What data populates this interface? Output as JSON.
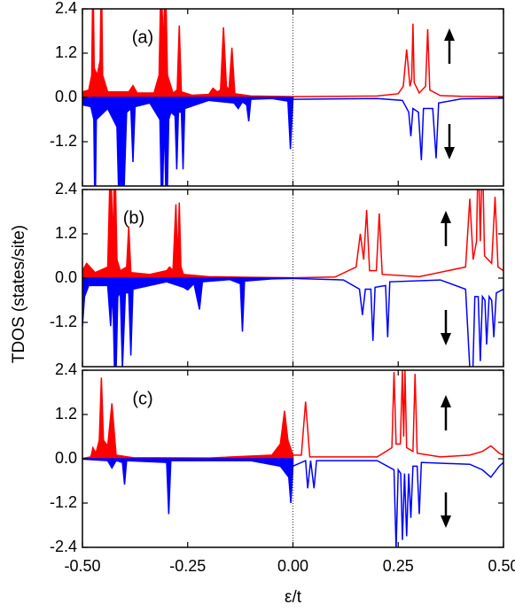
{
  "chart_data": [
    {
      "type": "line",
      "annotation": "(a)",
      "xlim": [
        -0.5,
        0.5
      ],
      "ylim": [
        -2.4,
        2.4
      ],
      "xticks": [
        -0.5,
        -0.25,
        0,
        0.25,
        0.5
      ],
      "yticks": [
        2.4,
        1.2,
        {
          "value": 0,
          "label": "0.0"
        },
        -1.2
      ],
      "vline": 0,
      "series": [
        {
          "color": "#ff0000",
          "fill": true,
          "x": [
            -0.5,
            -0.485,
            -0.478,
            -0.475,
            -0.472,
            -0.465,
            -0.458,
            -0.455,
            -0.452,
            -0.44,
            -0.39,
            -0.38,
            -0.37,
            -0.33,
            -0.318,
            -0.313,
            -0.308,
            -0.303,
            -0.298,
            -0.285,
            -0.275,
            -0.27,
            -0.265,
            -0.24,
            -0.2,
            -0.19,
            -0.18,
            -0.172,
            -0.165,
            -0.158,
            -0.152,
            -0.145,
            -0.138,
            -0.1,
            -0.05,
            0
          ],
          "values": [
            0.15,
            0.2,
            0.6,
            3.5,
            0.8,
            0.6,
            1,
            3.5,
            0.6,
            0.15,
            0.15,
            0.32,
            0.12,
            0.12,
            0.6,
            3.5,
            1.2,
            3.5,
            0.6,
            0.12,
            0.2,
            1.95,
            0.15,
            0.06,
            0.08,
            0.25,
            0.15,
            0.2,
            1.9,
            0.3,
            0.2,
            1.35,
            0.1,
            0.04,
            0.03,
            0.02
          ]
        },
        {
          "color": "#ff0000",
          "fill": false,
          "x": [
            0,
            0.2,
            0.25,
            0.262,
            0.27,
            0.278,
            0.282,
            0.285,
            0.288,
            0.3,
            0.315,
            0.32,
            0.325,
            0.35,
            0.4,
            0.5
          ],
          "values": [
            0.02,
            0.04,
            0.1,
            0.3,
            1.3,
            0.3,
            0.5,
            2.0,
            0.4,
            0.12,
            0.3,
            1.85,
            0.2,
            0.05,
            0.03,
            0.02
          ]
        },
        {
          "color": "#0000ff",
          "fill": true,
          "x": [
            -0.5,
            -0.48,
            -0.473,
            -0.47,
            -0.467,
            -0.44,
            -0.418,
            -0.412,
            -0.408,
            -0.404,
            -0.395,
            -0.385,
            -0.38,
            -0.375,
            -0.34,
            -0.316,
            -0.311,
            -0.306,
            -0.3,
            -0.295,
            -0.29,
            -0.28,
            -0.276,
            -0.272,
            -0.265,
            -0.261,
            -0.257,
            -0.2,
            -0.14,
            -0.13,
            -0.12,
            -0.11,
            -0.105,
            -0.1,
            -0.05,
            -0.012,
            -0.006,
            0
          ],
          "values": [
            -0.2,
            -0.25,
            -0.6,
            -3.5,
            -0.6,
            -0.3,
            -0.8,
            -3.5,
            -1.5,
            -3.5,
            -0.4,
            -0.3,
            -1.75,
            -0.25,
            -0.15,
            -0.6,
            -3.5,
            -0.5,
            -3.5,
            -0.6,
            -0.4,
            -0.5,
            -1.95,
            -0.4,
            -0.4,
            -1.95,
            -0.3,
            -0.08,
            -0.15,
            -0.3,
            -0.12,
            -0.2,
            -0.65,
            -0.05,
            -0.03,
            -0.1,
            -1.4,
            -0.05
          ]
        },
        {
          "color": "#0000ff",
          "fill": false,
          "x": [
            0,
            0.2,
            0.26,
            0.275,
            0.28,
            0.285,
            0.298,
            0.305,
            0.31,
            0.332,
            0.34,
            0.346,
            0.4,
            0.5
          ],
          "values": [
            -0.05,
            -0.03,
            -0.08,
            -0.4,
            -1.05,
            -0.3,
            -0.4,
            -1.7,
            -0.3,
            -0.3,
            -1.65,
            -0.15,
            -0.04,
            -0.02
          ]
        }
      ]
    },
    {
      "type": "line",
      "annotation": "(b)",
      "ylabel": "TDOS (states/site)",
      "xlim": [
        -0.5,
        0.5
      ],
      "ylim": [
        -2.4,
        2.4
      ],
      "xticks": [
        -0.5,
        -0.25,
        0,
        0.25,
        0.5
      ],
      "yticks": [
        2.4,
        1.2,
        {
          "value": 0,
          "label": "0.0"
        },
        -1.2
      ],
      "vline": 0,
      "series": [
        {
          "color": "#ff0000",
          "fill": true,
          "x": [
            -0.5,
            -0.49,
            -0.47,
            -0.44,
            -0.433,
            -0.428,
            -0.423,
            -0.418,
            -0.41,
            -0.395,
            -0.39,
            -0.385,
            -0.34,
            -0.3,
            -0.293,
            -0.285,
            -0.278,
            -0.274,
            -0.27,
            -0.266,
            -0.26,
            -0.2,
            -0.1,
            0
          ],
          "values": [
            0.2,
            0.4,
            0.15,
            0.3,
            3.5,
            0.8,
            3.5,
            0.5,
            0.2,
            0.3,
            1.4,
            0.15,
            0.1,
            0.2,
            0.3,
            0.2,
            2.0,
            0.4,
            2.05,
            0.3,
            0.1,
            0.04,
            0.02,
            0.01
          ]
        },
        {
          "color": "#ff0000",
          "fill": false,
          "x": [
            0,
            0.1,
            0.15,
            0.16,
            0.168,
            0.175,
            0.182,
            0.198,
            0.205,
            0.212,
            0.3,
            0.41,
            0.42,
            0.428,
            0.436,
            0.44,
            0.445,
            0.45,
            0.455,
            0.472,
            0.48,
            0.487,
            0.5
          ],
          "values": [
            0.01,
            0.03,
            0.3,
            1.2,
            0.5,
            1.85,
            0.2,
            0.2,
            1.75,
            0.1,
            0.04,
            0.3,
            2.15,
            0.5,
            1,
            3.5,
            1,
            3.5,
            0.6,
            0.4,
            2.2,
            0.3,
            0.2
          ]
        },
        {
          "color": "#0000ff",
          "fill": true,
          "x": [
            -0.5,
            -0.495,
            -0.485,
            -0.44,
            -0.433,
            -0.428,
            -0.422,
            -0.416,
            -0.41,
            -0.405,
            -0.398,
            -0.39,
            -0.385,
            -0.38,
            -0.3,
            -0.26,
            -0.25,
            -0.235,
            -0.222,
            -0.215,
            -0.15,
            -0.125,
            -0.12,
            -0.115,
            -0.05,
            0
          ],
          "values": [
            -1.3,
            -0.5,
            -0.2,
            -0.2,
            -1.3,
            -0.3,
            -3.5,
            -0.5,
            -0.4,
            -2.45,
            -0.4,
            -0.4,
            -2.1,
            -0.3,
            -0.1,
            -0.25,
            -0.32,
            -0.15,
            -0.85,
            -0.1,
            -0.04,
            -0.15,
            -1.45,
            -0.08,
            -0.02,
            -0.01
          ]
        },
        {
          "color": "#0000ff",
          "fill": false,
          "x": [
            0,
            0.12,
            0.158,
            0.165,
            0.172,
            0.185,
            0.19,
            0.195,
            0.22,
            0.225,
            0.23,
            0.35,
            0.41,
            0.425,
            0.432,
            0.44,
            0.445,
            0.45,
            0.456,
            0.46,
            0.466,
            0.472,
            0.477,
            0.483,
            0.5
          ],
          "values": [
            -0.01,
            -0.05,
            -0.3,
            -1.0,
            -0.3,
            -0.3,
            -1.7,
            -0.25,
            -0.2,
            -1.6,
            -0.1,
            -0.05,
            -0.3,
            -3.5,
            -0.5,
            -0.5,
            -2.25,
            -0.5,
            -0.6,
            -1.8,
            -0.5,
            -0.6,
            -1.6,
            -0.4,
            -0.3
          ]
        }
      ]
    },
    {
      "type": "line",
      "annotation": "(c)",
      "xlabel": "ε/t",
      "xlim": [
        -0.5,
        0.5
      ],
      "ylim": [
        -2.4,
        2.4
      ],
      "xticks": [
        {
          "value": -0.5,
          "label": "-0.50"
        },
        {
          "value": -0.25,
          "label": "-0.25"
        },
        {
          "value": 0,
          "label": "0.00"
        },
        {
          "value": 0.25,
          "label": "0.25"
        },
        {
          "value": 0.5,
          "label": "0.50"
        }
      ],
      "yticks": [
        2.4,
        1.2,
        {
          "value": 0,
          "label": "0.0"
        },
        -1.2,
        -2.4
      ],
      "vline": 0,
      "series": [
        {
          "color": "#ff0000",
          "fill": true,
          "x": [
            -0.5,
            -0.48,
            -0.475,
            -0.468,
            -0.46,
            -0.455,
            -0.45,
            -0.44,
            -0.43,
            -0.42,
            -0.38,
            -0.2,
            -0.05,
            -0.03,
            -0.02,
            -0.012,
            0
          ],
          "values": [
            0.01,
            0.05,
            0.3,
            0.15,
            0.5,
            2.2,
            0.5,
            0.35,
            1.5,
            0.1,
            0.03,
            0.02,
            0.1,
            0.4,
            1.3,
            0.5,
            0.1
          ]
        },
        {
          "color": "#ff0000",
          "fill": false,
          "x": [
            0,
            0.02,
            0.03,
            0.04,
            0.2,
            0.235,
            0.24,
            0.245,
            0.255,
            0.26,
            0.263,
            0.266,
            0.27,
            0.285,
            0.29,
            0.295,
            0.35,
            0.42,
            0.45,
            0.47,
            0.49,
            0.5
          ],
          "values": [
            0.1,
            0.1,
            1.55,
            0.05,
            0.05,
            0.3,
            2.35,
            0.4,
            0.4,
            2.4,
            0.6,
            2.4,
            0.3,
            0.2,
            2.3,
            0.15,
            0.05,
            0.1,
            0.2,
            0.35,
            0.15,
            0.1
          ]
        },
        {
          "color": "#0000ff",
          "fill": true,
          "x": [
            -0.5,
            -0.44,
            -0.43,
            -0.42,
            -0.405,
            -0.4,
            -0.395,
            -0.3,
            -0.295,
            -0.29,
            -0.1,
            -0.03,
            -0.01,
            -0.005,
            0
          ],
          "values": [
            -0.01,
            -0.05,
            -0.25,
            -0.05,
            -0.1,
            -0.7,
            -0.05,
            -0.1,
            -1.5,
            -0.05,
            -0.05,
            -0.2,
            -0.5,
            -1.2,
            -0.2
          ]
        },
        {
          "color": "#0000ff",
          "fill": false,
          "x": [
            0,
            0.03,
            0.035,
            0.042,
            0.05,
            0.056,
            0.2,
            0.24,
            0.245,
            0.25,
            0.256,
            0.26,
            0.265,
            0.27,
            0.275,
            0.28,
            0.285,
            0.295,
            0.3,
            0.305,
            0.42,
            0.45,
            0.47,
            0.49,
            0.5
          ],
          "values": [
            -0.2,
            -0.05,
            -0.8,
            -0.05,
            -0.8,
            -0.05,
            -0.05,
            -0.3,
            -2.45,
            -0.3,
            -0.4,
            -2.2,
            -0.4,
            -2.1,
            -0.4,
            -1.6,
            -0.2,
            -0.2,
            -1.5,
            -0.1,
            -0.15,
            -0.3,
            -0.5,
            -0.2,
            -0.1
          ]
        }
      ]
    }
  ]
}
